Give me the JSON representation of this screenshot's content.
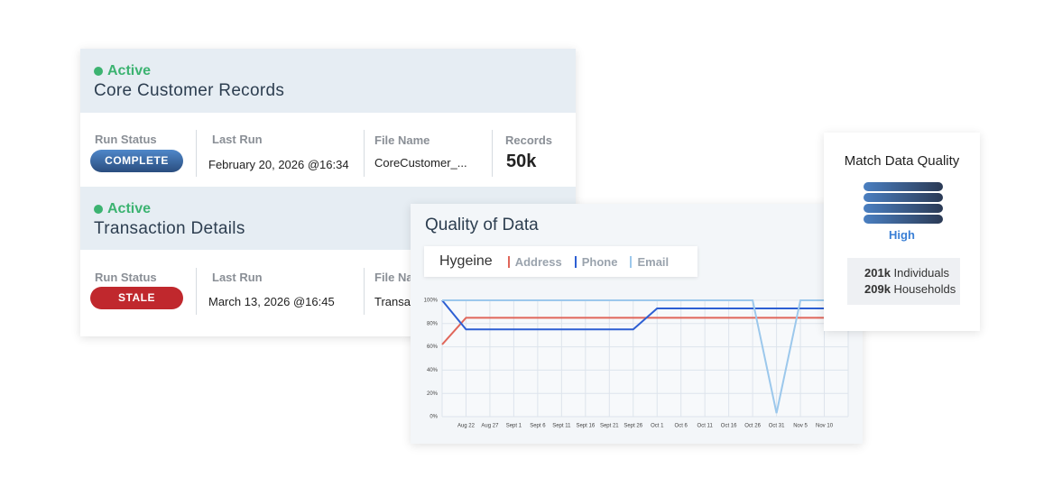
{
  "records": [
    {
      "status": "Active",
      "title": "Core Customer Records",
      "fields": [
        {
          "label": "Run Status",
          "value": "COMPLETE"
        },
        {
          "label": "Last Run",
          "value": "February 20, 2026 @16:34"
        },
        {
          "label": "File Name",
          "value": "CoreCustomer_..."
        },
        {
          "label": "Records",
          "value": "50k"
        }
      ]
    },
    {
      "status": "Active",
      "title": "Transaction Details",
      "fields": [
        {
          "label": "Run Status",
          "value": "STALE"
        },
        {
          "label": "Last Run",
          "value": "March 13, 2026 @16:45"
        },
        {
          "label": "File Name",
          "value": "Transa"
        }
      ]
    }
  ],
  "chart_data": {
    "type": "line",
    "title": "Quality of Data",
    "legend_title": "Hygeine",
    "categories": [
      null,
      "Aug 22",
      "Aug 27",
      "Sept 1",
      "Sept 6",
      "Sept 11",
      "Sept 16",
      "Sept 21",
      "Sept 26",
      "Oct 1",
      "Oct 6",
      "Oct 11",
      "Oct 16",
      "Oct 26",
      "Oct 31",
      "Nov 5",
      "Nov 10",
      null
    ],
    "series": [
      {
        "name": "Address",
        "color": "#e0665a",
        "values": [
          62,
          85,
          85,
          85,
          85,
          85,
          85,
          85,
          85,
          85,
          85,
          85,
          85,
          85,
          85,
          85,
          85,
          85
        ]
      },
      {
        "name": "Phone",
        "color": "#2d5fd3",
        "values": [
          100,
          75,
          75,
          75,
          75,
          75,
          75,
          75,
          75,
          93,
          93,
          93,
          93,
          93,
          93,
          93,
          93,
          93
        ]
      },
      {
        "name": "Email",
        "color": "#9cc8ec",
        "values": [
          100,
          100,
          100,
          100,
          100,
          100,
          100,
          100,
          100,
          100,
          100,
          100,
          100,
          100,
          3,
          100,
          100,
          100
        ]
      }
    ],
    "ylim": [
      0,
      100
    ],
    "yticks": [
      {
        "value": 0,
        "label": "0%"
      },
      {
        "value": 20,
        "label": "20%"
      },
      {
        "value": 40,
        "label": "40%"
      },
      {
        "value": 60,
        "label": "60%"
      },
      {
        "value": 80,
        "label": "80%"
      },
      {
        "value": 100,
        "label": "100%"
      }
    ],
    "grid": true
  },
  "match": {
    "title": "Match Data Quality",
    "level": "High",
    "stats": [
      {
        "value": "201k",
        "label": "Individuals"
      },
      {
        "value": "209k",
        "label": "Households"
      }
    ]
  }
}
